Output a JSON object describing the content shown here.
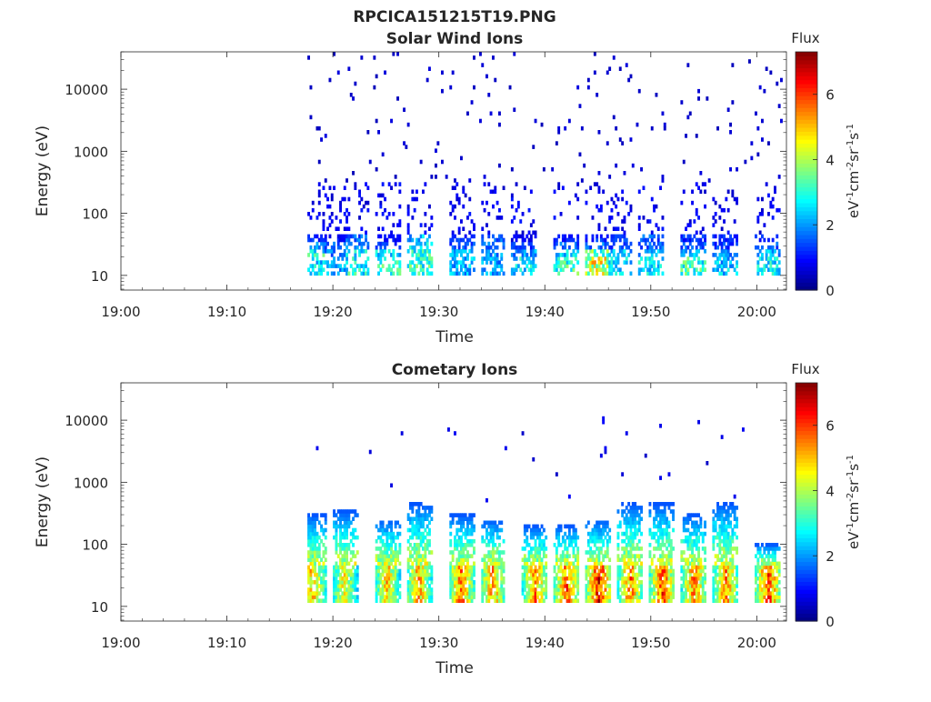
{
  "figure_title": "RPCICA151215T19.PNG",
  "chart_data": [
    {
      "type": "heatmap",
      "title": "Solar Wind Ions",
      "xlabel": "Time",
      "ylabel": "Energy (eV)",
      "y_scale": "log",
      "ylim": [
        5.8,
        40000
      ],
      "x_ticks": [
        "19:00",
        "19:10",
        "19:20",
        "19:30",
        "19:40",
        "19:50",
        "20:00"
      ],
      "y_ticks": [
        "10",
        "100",
        "1000",
        "10000"
      ],
      "colorbar": {
        "title": "Flux",
        "label": "eV-1cm-2sr-1s-1",
        "range": [
          0,
          7.3
        ],
        "ticks": [
          "0",
          "2",
          "4",
          "6"
        ],
        "colormap": "jet"
      },
      "bursts": [
        {
          "t": "19:18",
          "low": [
            2.5,
            2.9,
            2.0,
            1.2
          ],
          "high": 0.6
        },
        {
          "t": "19:20",
          "low": [
            2.0,
            1.8,
            1.5,
            1.0
          ],
          "high": 0.4
        },
        {
          "t": "19:22",
          "low": [
            2.8,
            2.6,
            1.8,
            1.6
          ],
          "high": 0.7
        },
        {
          "t": "19:25",
          "low": [
            2.9,
            2.5,
            1.2,
            0.9
          ],
          "high": 0.5
        },
        {
          "t": "19:28",
          "low": [
            3.0,
            2.8,
            2.4,
            2.2
          ],
          "high": 0.8
        },
        {
          "t": "19:32",
          "low": [
            2.2,
            2.0,
            1.4,
            1.2
          ],
          "high": 0.6
        },
        {
          "t": "19:35",
          "low": [
            2.0,
            1.9,
            1.8,
            1.6
          ],
          "high": 0.5
        },
        {
          "t": "19:38",
          "low": [
            2.6,
            2.0,
            1.2,
            0.8
          ],
          "high": 0.6
        },
        {
          "t": "19:42",
          "low": [
            3.0,
            2.5,
            1.5,
            1.0
          ],
          "high": 0.7
        },
        {
          "t": "19:45",
          "low": [
            4.2,
            3.4,
            1.8,
            1.2
          ],
          "high": 0.5
        },
        {
          "t": "19:47",
          "low": [
            2.5,
            2.2,
            1.5,
            1.3
          ],
          "high": 0.9
        },
        {
          "t": "19:50",
          "low": [
            2.5,
            2.2,
            1.6,
            1.5
          ],
          "high": 0.9
        },
        {
          "t": "19:54",
          "low": [
            3.0,
            2.4,
            1.5,
            1.2
          ],
          "high": 0.7
        },
        {
          "t": "19:57",
          "low": [
            2.3,
            2.0,
            1.3,
            1.2
          ],
          "high": 0.6
        },
        {
          "t": "20:01",
          "low": [
            2.6,
            2.2,
            1.5,
            1.2
          ],
          "high": 0.7
        }
      ]
    },
    {
      "type": "heatmap",
      "title": "Cometary Ions",
      "xlabel": "Time",
      "ylabel": "Energy (eV)",
      "y_scale": "log",
      "ylim": [
        5.8,
        40000
      ],
      "x_ticks": [
        "19:00",
        "19:10",
        "19:20",
        "19:30",
        "19:40",
        "19:50",
        "20:00"
      ],
      "y_ticks": [
        "10",
        "100",
        "1000",
        "10000"
      ],
      "colorbar": {
        "title": "Flux",
        "label": "eV-1cm-2sr-1s-1",
        "range": [
          0,
          7.3
        ],
        "ticks": [
          "0",
          "2",
          "4",
          "6"
        ],
        "colormap": "jet"
      },
      "bursts": [
        {
          "t": "19:18",
          "peak": 5.5,
          "top_energy": 300
        },
        {
          "t": "19:21",
          "peak": 5.0,
          "top_energy": 350
        },
        {
          "t": "19:25",
          "peak": 5.3,
          "top_energy": 250
        },
        {
          "t": "19:28",
          "peak": 5.6,
          "top_energy": 450
        },
        {
          "t": "19:32",
          "peak": 6.0,
          "top_energy": 300
        },
        {
          "t": "19:35",
          "peak": 5.6,
          "top_energy": 250
        },
        {
          "t": "19:39",
          "peak": 5.8,
          "top_energy": 200
        },
        {
          "t": "19:42",
          "peak": 6.2,
          "top_energy": 200
        },
        {
          "t": "19:45",
          "peak": 6.8,
          "top_energy": 250
        },
        {
          "t": "19:48",
          "peak": 5.9,
          "top_energy": 450
        },
        {
          "t": "19:51",
          "peak": 6.3,
          "top_energy": 450
        },
        {
          "t": "19:54",
          "peak": 5.9,
          "top_energy": 300
        },
        {
          "t": "19:57",
          "peak": 5.8,
          "top_energy": 450
        },
        {
          "t": "20:01",
          "peak": 6.4,
          "top_energy": 100
        }
      ]
    }
  ]
}
